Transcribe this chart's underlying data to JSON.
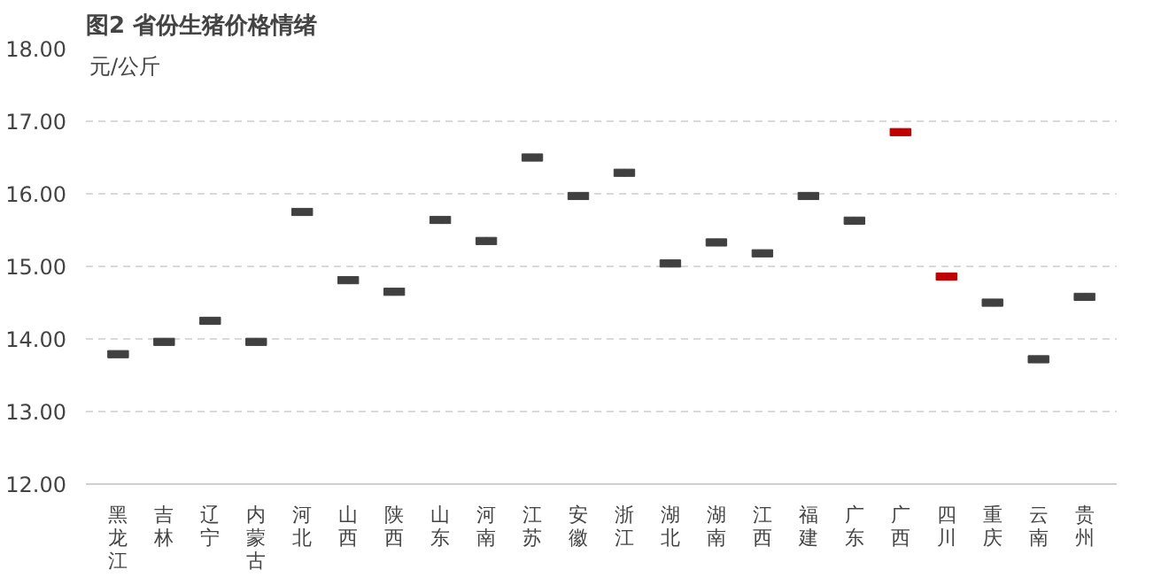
{
  "chart_data": {
    "type": "candlestick",
    "title": "图2 省份生猪价格情绪",
    "ylabel": "元/公斤",
    "categories": [
      "黑龙江",
      "吉林",
      "辽宁",
      "内蒙古",
      "河北",
      "山西",
      "陕西",
      "山东",
      "河南",
      "江苏",
      "安徽",
      "浙江",
      "湖北",
      "湖南",
      "江西",
      "福建",
      "广东",
      "广西",
      "四川",
      "重庆",
      "云南",
      "贵州"
    ],
    "ohlc": [
      [
        13.74,
        13.84,
        13.74,
        13.84
      ],
      [
        13.91,
        14.01,
        13.91,
        14.01
      ],
      [
        14.2,
        14.3,
        14.2,
        14.3
      ],
      [
        13.91,
        14.01,
        13.91,
        14.01
      ],
      [
        15.7,
        15.8,
        15.7,
        15.8
      ],
      [
        14.76,
        14.86,
        14.76,
        14.86
      ],
      [
        14.6,
        14.7,
        14.6,
        14.7
      ],
      [
        15.59,
        15.69,
        15.59,
        15.69
      ],
      [
        15.3,
        15.4,
        15.3,
        15.4
      ],
      [
        16.45,
        16.55,
        16.45,
        16.55
      ],
      [
        15.92,
        16.02,
        15.92,
        16.02
      ],
      [
        16.24,
        16.34,
        16.24,
        16.34
      ],
      [
        14.99,
        15.09,
        14.99,
        15.09
      ],
      [
        15.28,
        15.38,
        15.28,
        15.38
      ],
      [
        15.13,
        15.23,
        15.13,
        15.23
      ],
      [
        15.92,
        16.02,
        15.92,
        16.02
      ],
      [
        15.58,
        15.68,
        15.58,
        15.68
      ],
      [
        16.9,
        16.9,
        16.8,
        16.8
      ],
      [
        14.91,
        14.91,
        14.81,
        14.81
      ],
      [
        14.45,
        14.55,
        14.45,
        14.55
      ],
      [
        13.67,
        13.77,
        13.67,
        13.77
      ],
      [
        14.53,
        14.63,
        14.53,
        14.63
      ]
    ],
    "colors": [
      "#404040",
      "#404040",
      "#404040",
      "#404040",
      "#404040",
      "#404040",
      "#404040",
      "#404040",
      "#404040",
      "#404040",
      "#404040",
      "#404040",
      "#404040",
      "#404040",
      "#404040",
      "#404040",
      "#404040",
      "#c00000",
      "#c00000",
      "#404040",
      "#404040",
      "#404040"
    ],
    "ylim": [
      12,
      18
    ],
    "yticks": [
      {
        "value": 12,
        "label": "12.00"
      },
      {
        "value": 13,
        "label": "13.00"
      },
      {
        "value": 14,
        "label": "14.00"
      },
      {
        "value": 15,
        "label": "15.00"
      },
      {
        "value": 16,
        "label": "16.00"
      },
      {
        "value": 17,
        "label": "17.00"
      },
      {
        "value": 18,
        "label": "18.00"
      }
    ],
    "grid": "y"
  }
}
